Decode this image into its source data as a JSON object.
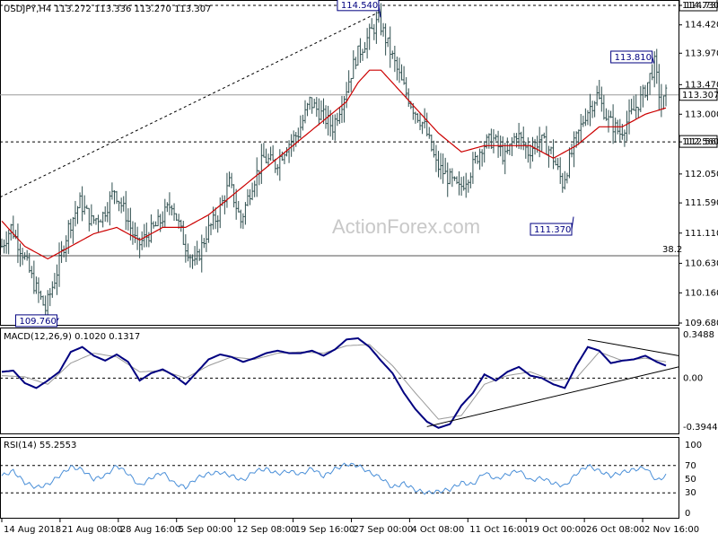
{
  "symbol_header": "USDJPY,H4  113.272 113.336 113.270 113.307",
  "macd_header": "MACD(12,26,9) 0.1020 0.1317",
  "rsi_header": "RSI(14) 55.2553",
  "watermark": "ActionForex.com",
  "fib_label": "38.2",
  "colors": {
    "price_bars": "#2f4f4f",
    "moving_average": "#cc0000",
    "macd_line": "#000080",
    "signal_line": "#9a9a9a",
    "rsi_line": "#4a8fd8",
    "annotation_text": "#000080"
  },
  "chart_data": [
    {
      "type": "candlestick",
      "panel": "price",
      "y_axis_ticks": [
        "114.730",
        "114.420",
        "113.970",
        "113.470",
        "113.000",
        "112.560",
        "112.050",
        "111.590",
        "111.110",
        "110.630",
        "110.160",
        "109.680"
      ],
      "ylim": [
        109.68,
        114.73
      ],
      "current_price": "113.307",
      "annotations": [
        {
          "text": "114.540",
          "value": 114.54
        },
        {
          "text": "113.810",
          "value": 113.81
        },
        {
          "text": "111.370",
          "value": 111.37
        },
        {
          "text": "109.760",
          "value": 109.76
        }
      ],
      "levels": [
        {
          "label": "114.730",
          "value": 114.73,
          "style": "dashed"
        },
        {
          "label": "112.560",
          "value": 112.56,
          "style": "dashed"
        },
        {
          "label": "113.307",
          "value": 113.307,
          "style": "solid"
        },
        {
          "label": "38.2",
          "value": 110.75,
          "style": "solid"
        }
      ],
      "x_labels": [
        "14 Aug 2018",
        "21 Aug 08:00",
        "28 Aug 16:00",
        "5 Sep 00:00",
        "12 Sep 08:00",
        "19 Sep 16:00",
        "27 Sep 00:00",
        "4 Oct 08:00",
        "11 Oct 16:00",
        "19 Oct 00:00",
        "26 Oct 08:00",
        "2 Nov 16:00"
      ],
      "close_path": [
        [
          0,
          110.9
        ],
        [
          4,
          111.2
        ],
        [
          9,
          110.8
        ],
        [
          14,
          110.3
        ],
        [
          19,
          109.9
        ],
        [
          24,
          110.5
        ],
        [
          29,
          111.2
        ],
        [
          34,
          111.6
        ],
        [
          39,
          111.3
        ],
        [
          44,
          111.4
        ],
        [
          49,
          111.8
        ],
        [
          54,
          111.4
        ],
        [
          59,
          110.9
        ],
        [
          64,
          111.1
        ],
        [
          69,
          111.3
        ],
        [
          74,
          111.6
        ],
        [
          79,
          111.0
        ],
        [
          84,
          110.6
        ],
        [
          89,
          111.1
        ],
        [
          94,
          111.4
        ],
        [
          99,
          111.9
        ],
        [
          104,
          111.3
        ],
        [
          109,
          111.9
        ],
        [
          114,
          112.3
        ],
        [
          119,
          112.2
        ],
        [
          124,
          112.5
        ],
        [
          129,
          112.7
        ],
        [
          134,
          113.2
        ],
        [
          139,
          113.0
        ],
        [
          144,
          112.8
        ],
        [
          149,
          113.3
        ],
        [
          154,
          113.9
        ],
        [
          159,
          114.2
        ],
        [
          164,
          114.5
        ],
        [
          169,
          114.0
        ],
        [
          174,
          113.5
        ],
        [
          179,
          113.1
        ],
        [
          184,
          112.8
        ],
        [
          189,
          112.2
        ],
        [
          194,
          112.0
        ],
        [
          199,
          111.8
        ],
        [
          204,
          112.1
        ],
        [
          209,
          112.5
        ],
        [
          214,
          112.6
        ],
        [
          219,
          112.3
        ],
        [
          224,
          112.7
        ],
        [
          229,
          112.4
        ],
        [
          234,
          112.6
        ],
        [
          239,
          112.4
        ],
        [
          244,
          111.9
        ],
        [
          249,
          112.5
        ],
        [
          254,
          113.0
        ],
        [
          259,
          113.3
        ],
        [
          264,
          112.9
        ],
        [
          269,
          112.7
        ],
        [
          274,
          113.0
        ],
        [
          279,
          113.3
        ],
        [
          284,
          113.8
        ],
        [
          287,
          113.1
        ],
        [
          289,
          113.307
        ]
      ],
      "moving_average": [
        [
          0,
          111.3
        ],
        [
          10,
          110.9
        ],
        [
          20,
          110.7
        ],
        [
          30,
          110.9
        ],
        [
          40,
          111.1
        ],
        [
          50,
          111.2
        ],
        [
          60,
          111.0
        ],
        [
          70,
          111.2
        ],
        [
          80,
          111.2
        ],
        [
          90,
          111.4
        ],
        [
          100,
          111.7
        ],
        [
          110,
          112.0
        ],
        [
          120,
          112.3
        ],
        [
          130,
          112.6
        ],
        [
          140,
          112.9
        ],
        [
          150,
          113.2
        ],
        [
          155,
          113.5
        ],
        [
          160,
          113.7
        ],
        [
          165,
          113.7
        ],
        [
          170,
          113.5
        ],
        [
          180,
          113.1
        ],
        [
          190,
          112.7
        ],
        [
          200,
          112.4
        ],
        [
          210,
          112.5
        ],
        [
          220,
          112.5
        ],
        [
          230,
          112.5
        ],
        [
          240,
          112.3
        ],
        [
          250,
          112.5
        ],
        [
          260,
          112.8
        ],
        [
          270,
          112.8
        ],
        [
          280,
          113.0
        ],
        [
          289,
          113.1
        ]
      ]
    },
    {
      "type": "line",
      "panel": "macd",
      "name": "MACD(12,26,9)",
      "y_axis_ticks": [
        "0.3488",
        "0.00",
        "-0.3944"
      ],
      "ylim": [
        -0.43,
        0.37
      ],
      "macd": [
        [
          0,
          0.05
        ],
        [
          5,
          0.06
        ],
        [
          10,
          -0.04
        ],
        [
          15,
          -0.08
        ],
        [
          20,
          -0.02
        ],
        [
          25,
          0.05
        ],
        [
          30,
          0.21
        ],
        [
          35,
          0.25
        ],
        [
          40,
          0.18
        ],
        [
          45,
          0.14
        ],
        [
          50,
          0.19
        ],
        [
          55,
          0.13
        ],
        [
          60,
          -0.02
        ],
        [
          65,
          0.04
        ],
        [
          70,
          0.07
        ],
        [
          75,
          0.02
        ],
        [
          80,
          -0.05
        ],
        [
          85,
          0.05
        ],
        [
          90,
          0.15
        ],
        [
          95,
          0.19
        ],
        [
          100,
          0.17
        ],
        [
          105,
          0.13
        ],
        [
          110,
          0.16
        ],
        [
          115,
          0.2
        ],
        [
          120,
          0.22
        ],
        [
          125,
          0.2
        ],
        [
          130,
          0.2
        ],
        [
          135,
          0.22
        ],
        [
          140,
          0.18
        ],
        [
          145,
          0.23
        ],
        [
          150,
          0.31
        ],
        [
          155,
          0.32
        ],
        [
          160,
          0.25
        ],
        [
          165,
          0.14
        ],
        [
          170,
          0.04
        ],
        [
          175,
          -0.12
        ],
        [
          180,
          -0.25
        ],
        [
          185,
          -0.35
        ],
        [
          190,
          -0.4
        ],
        [
          195,
          -0.37
        ],
        [
          200,
          -0.22
        ],
        [
          205,
          -0.12
        ],
        [
          210,
          0.03
        ],
        [
          215,
          -0.02
        ],
        [
          220,
          0.05
        ],
        [
          225,
          0.09
        ],
        [
          230,
          0.02
        ],
        [
          235,
          0.0
        ],
        [
          240,
          -0.05
        ],
        [
          245,
          -0.08
        ],
        [
          250,
          0.1
        ],
        [
          255,
          0.25
        ],
        [
          260,
          0.22
        ],
        [
          265,
          0.12
        ],
        [
          270,
          0.14
        ],
        [
          275,
          0.15
        ],
        [
          280,
          0.18
        ],
        [
          285,
          0.13
        ],
        [
          289,
          0.1
        ]
      ],
      "signal": [
        [
          0,
          0.02
        ],
        [
          10,
          0.01
        ],
        [
          20,
          -0.05
        ],
        [
          30,
          0.12
        ],
        [
          40,
          0.2
        ],
        [
          50,
          0.17
        ],
        [
          60,
          0.05
        ],
        [
          70,
          0.06
        ],
        [
          80,
          0.0
        ],
        [
          90,
          0.1
        ],
        [
          100,
          0.17
        ],
        [
          110,
          0.15
        ],
        [
          120,
          0.2
        ],
        [
          130,
          0.21
        ],
        [
          140,
          0.2
        ],
        [
          150,
          0.26
        ],
        [
          160,
          0.27
        ],
        [
          170,
          0.1
        ],
        [
          180,
          -0.12
        ],
        [
          190,
          -0.33
        ],
        [
          200,
          -0.3
        ],
        [
          210,
          -0.05
        ],
        [
          220,
          0.02
        ],
        [
          230,
          0.05
        ],
        [
          240,
          -0.02
        ],
        [
          250,
          0.0
        ],
        [
          260,
          0.21
        ],
        [
          270,
          0.14
        ],
        [
          280,
          0.16
        ],
        [
          289,
          0.13
        ]
      ]
    },
    {
      "type": "line",
      "panel": "rsi",
      "name": "RSI(14)",
      "y_axis_ticks": [
        "100",
        "70",
        "50",
        "30",
        "0"
      ],
      "ylim": [
        0,
        100
      ],
      "rsi": [
        [
          0,
          55
        ],
        [
          5,
          62
        ],
        [
          10,
          45
        ],
        [
          15,
          38
        ],
        [
          20,
          42
        ],
        [
          25,
          55
        ],
        [
          30,
          68
        ],
        [
          35,
          64
        ],
        [
          40,
          50
        ],
        [
          45,
          55
        ],
        [
          50,
          70
        ],
        [
          55,
          58
        ],
        [
          60,
          40
        ],
        [
          65,
          52
        ],
        [
          70,
          60
        ],
        [
          75,
          44
        ],
        [
          80,
          38
        ],
        [
          85,
          52
        ],
        [
          90,
          58
        ],
        [
          95,
          60
        ],
        [
          100,
          55
        ],
        [
          105,
          48
        ],
        [
          110,
          62
        ],
        [
          115,
          65
        ],
        [
          120,
          58
        ],
        [
          125,
          62
        ],
        [
          130,
          57
        ],
        [
          135,
          66
        ],
        [
          140,
          54
        ],
        [
          145,
          65
        ],
        [
          150,
          72
        ],
        [
          155,
          70
        ],
        [
          160,
          60
        ],
        [
          165,
          52
        ],
        [
          170,
          38
        ],
        [
          175,
          44
        ],
        [
          180,
          34
        ],
        [
          185,
          30
        ],
        [
          190,
          32
        ],
        [
          195,
          35
        ],
        [
          200,
          45
        ],
        [
          205,
          42
        ],
        [
          210,
          60
        ],
        [
          215,
          50
        ],
        [
          220,
          57
        ],
        [
          225,
          63
        ],
        [
          230,
          48
        ],
        [
          235,
          52
        ],
        [
          240,
          44
        ],
        [
          245,
          40
        ],
        [
          250,
          58
        ],
        [
          255,
          70
        ],
        [
          260,
          62
        ],
        [
          265,
          55
        ],
        [
          270,
          60
        ],
        [
          275,
          64
        ],
        [
          280,
          67
        ],
        [
          285,
          48
        ],
        [
          289,
          55
        ]
      ],
      "levels": [
        70,
        30
      ]
    }
  ]
}
